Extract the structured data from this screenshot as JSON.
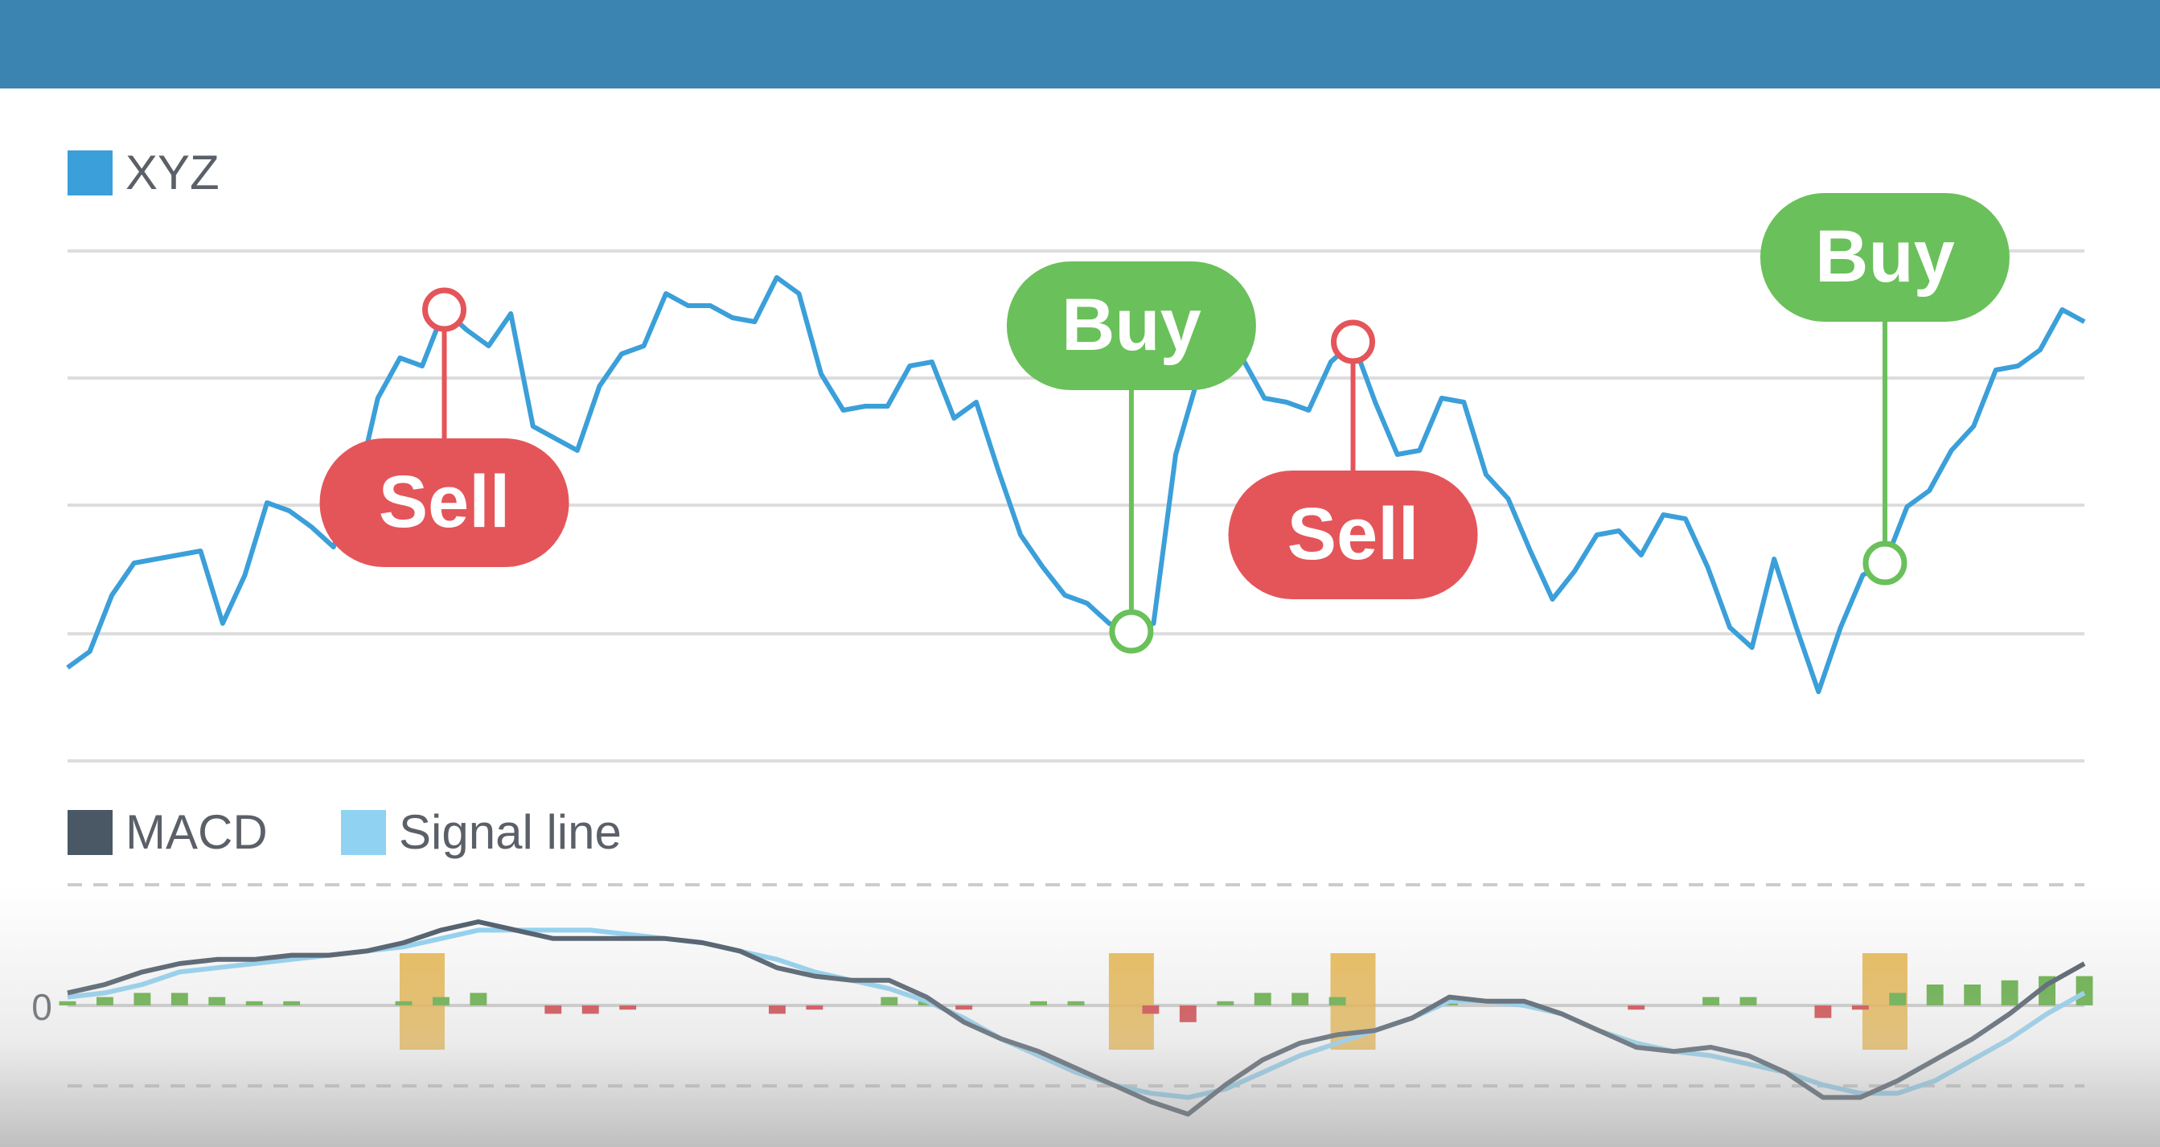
{
  "legend": {
    "price": {
      "label": "XYZ",
      "color": "#3b9fd9"
    },
    "macd": {
      "label": "MACD",
      "color": "#4a5866"
    },
    "signal": {
      "label": "Signal line",
      "color": "#8fd2f2"
    }
  },
  "zero_label": "0",
  "colors": {
    "buy": "#6ac05a",
    "sell": "#e4555a",
    "hist_positive": "#5fae3f",
    "hist_negative": "#d33f44",
    "crossover_marker": "#e9b03a",
    "grid": "#dddddd",
    "header": "#3b84b2"
  },
  "chart_data": [
    {
      "type": "line",
      "series": [
        {
          "name": "XYZ",
          "values": [
            10,
            14,
            28,
            36,
            37,
            38,
            39,
            21,
            33,
            51,
            49,
            45,
            40,
            53,
            77,
            87,
            85,
            99,
            94,
            90,
            98,
            70,
            67,
            64,
            80,
            88,
            90,
            103,
            100,
            100,
            97,
            96,
            107,
            103,
            83,
            74,
            75,
            75,
            85,
            86,
            72,
            76,
            59,
            43,
            35,
            28,
            26,
            21,
            19,
            21,
            63,
            82,
            82,
            87,
            77,
            76,
            74,
            86,
            91,
            76,
            63,
            64,
            77,
            76,
            58,
            52,
            39,
            27,
            34,
            43,
            44,
            38,
            48,
            47,
            35,
            20,
            15,
            37,
            20,
            4,
            20,
            33,
            36,
            50,
            54,
            64,
            70,
            84,
            85,
            89,
            99,
            96
          ]
        }
      ],
      "annotations": [
        {
          "label": "Sell",
          "kind": "sell",
          "index": 17
        },
        {
          "label": "Buy",
          "kind": "buy",
          "index": 48
        },
        {
          "label": "Sell",
          "kind": "sell",
          "index": 58
        },
        {
          "label": "Buy",
          "kind": "buy",
          "index": 82
        }
      ],
      "ylim": [
        0,
        110
      ],
      "grid": true
    },
    {
      "type": "line",
      "y_ticks": [
        "0"
      ],
      "series": [
        {
          "name": "MACD",
          "values": [
            0.3,
            0.5,
            0.8,
            1.0,
            1.1,
            1.1,
            1.2,
            1.2,
            1.3,
            1.5,
            1.8,
            2.0,
            1.8,
            1.6,
            1.6,
            1.6,
            1.6,
            1.5,
            1.3,
            0.9,
            0.7,
            0.6,
            0.6,
            0.2,
            -0.4,
            -0.8,
            -1.1,
            -1.5,
            -1.9,
            -2.3,
            -2.6,
            -1.9,
            -1.3,
            -0.9,
            -0.7,
            -0.6,
            -0.3,
            0.2,
            0.1,
            0.1,
            -0.2,
            -0.6,
            -1.0,
            -1.1,
            -1.0,
            -1.2,
            -1.6,
            -2.2,
            -2.2,
            -1.8,
            -1.3,
            -0.8,
            -0.2,
            0.5,
            1.0
          ]
        },
        {
          "name": "Signal line",
          "values": [
            0.2,
            0.3,
            0.5,
            0.8,
            0.9,
            1.0,
            1.1,
            1.2,
            1.3,
            1.4,
            1.6,
            1.8,
            1.8,
            1.8,
            1.8,
            1.7,
            1.6,
            1.5,
            1.3,
            1.1,
            0.8,
            0.6,
            0.4,
            0.1,
            -0.3,
            -0.8,
            -1.2,
            -1.6,
            -1.9,
            -2.1,
            -2.2,
            -2.0,
            -1.6,
            -1.2,
            -0.9,
            -0.6,
            -0.3,
            0.1,
            0.1,
            0.0,
            -0.2,
            -0.6,
            -0.9,
            -1.1,
            -1.2,
            -1.4,
            -1.6,
            -1.9,
            -2.1,
            -2.1,
            -1.8,
            -1.3,
            -0.8,
            -0.2,
            0.3
          ]
        },
        {
          "name": "Histogram",
          "type": "bar",
          "values": [
            0.1,
            0.2,
            0.3,
            0.3,
            0.2,
            0.1,
            0.1,
            0.0,
            0.0,
            0.1,
            0.2,
            0.3,
            0.0,
            -0.2,
            -0.2,
            -0.1,
            0.0,
            0.0,
            0.0,
            -0.2,
            -0.1,
            0.0,
            0.2,
            0.1,
            -0.1,
            0.0,
            0.1,
            0.1,
            0.0,
            -0.2,
            -0.4,
            0.1,
            0.3,
            0.3,
            0.2,
            0.0,
            0.0,
            0.1,
            0.0,
            0.1,
            0.0,
            0.0,
            -0.1,
            0.0,
            0.2,
            0.2,
            0.0,
            -0.3,
            -0.1,
            0.3,
            0.5,
            0.5,
            0.6,
            0.7,
            0.7
          ]
        }
      ],
      "crossovers_at_index": [
        16,
        48,
        58,
        82
      ],
      "grid": true
    }
  ]
}
